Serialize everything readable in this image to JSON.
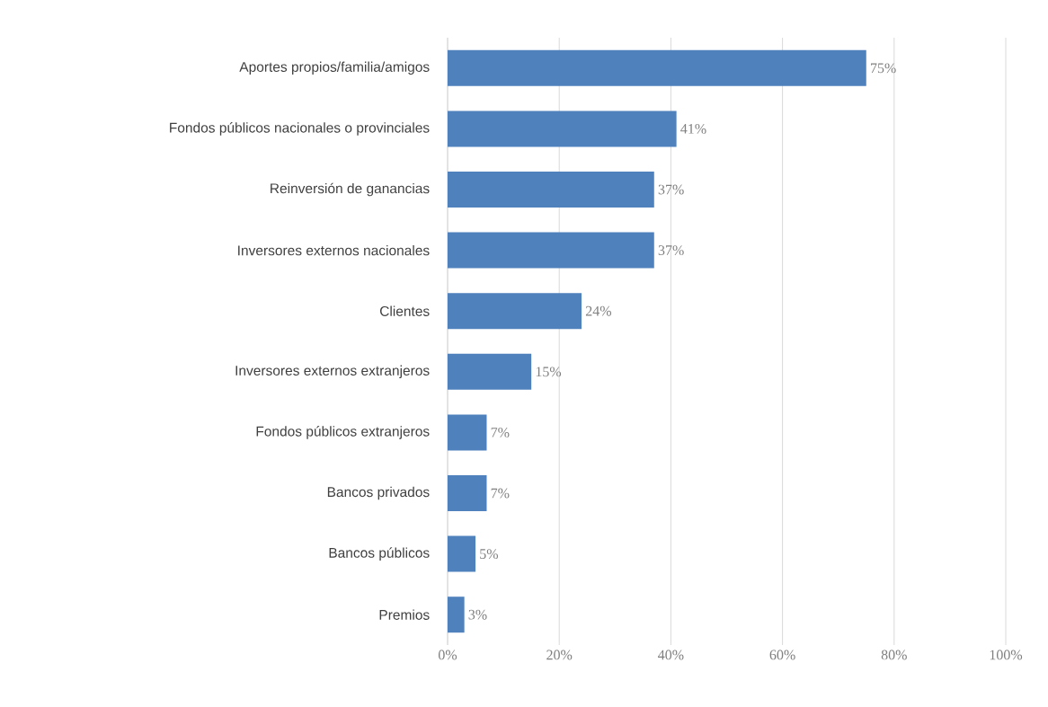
{
  "chart_data": {
    "type": "bar",
    "orientation": "horizontal",
    "categories": [
      "Aportes propios/familia/amigos",
      "Fondos públicos nacionales o provinciales",
      "Reinversión de ganancias",
      "Inversores externos nacionales",
      "Clientes",
      "Inversores externos extranjeros",
      "Fondos públicos extranjeros",
      "Bancos privados",
      "Bancos públicos",
      "Premios"
    ],
    "values": [
      75,
      41,
      37,
      37,
      24,
      15,
      7,
      7,
      5,
      3
    ],
    "value_labels": [
      "75%",
      "41%",
      "37%",
      "37%",
      "24%",
      "15%",
      "7%",
      "7%",
      "5%",
      "3%"
    ],
    "color": "#4f81bd",
    "xlim": [
      0,
      100
    ],
    "xticks": [
      {
        "value": 0,
        "label": "0%"
      },
      {
        "value": 20,
        "label": "20%"
      },
      {
        "value": 40,
        "label": "40%"
      },
      {
        "value": 60,
        "label": "60%"
      },
      {
        "value": 80,
        "label": "80%"
      },
      {
        "value": 100,
        "label": "100%"
      }
    ],
    "grid": "x"
  }
}
